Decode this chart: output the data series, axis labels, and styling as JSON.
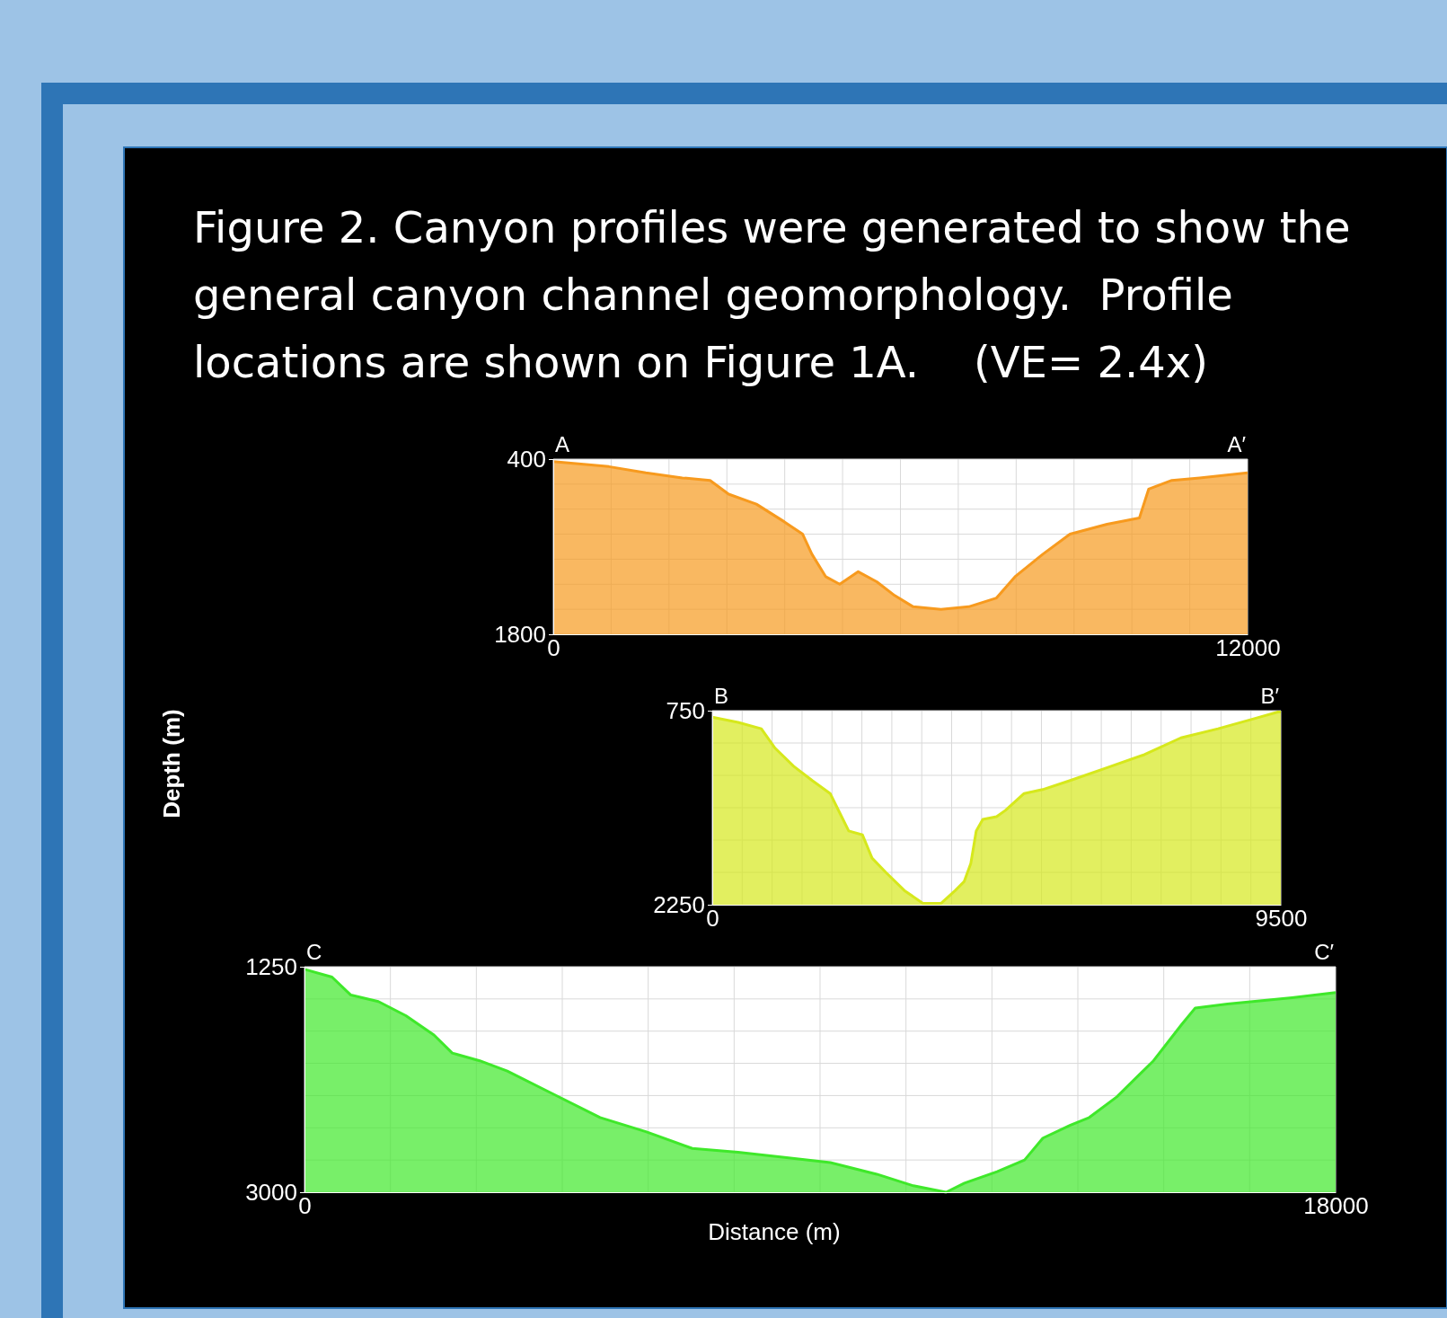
{
  "chart_data": [
    {
      "type": "line",
      "title": "Figure 2. Canyon profiles were generated to show the general canyon channel geomorphology.  Profile locations are shown on Figure 1A.    (VE= 2.4x)",
      "grid": true,
      "xlim": [
        0,
        12000
      ],
      "ylim": [
        1800,
        400
      ],
      "xticks": [
        0,
        {
          "value": 1000,
          "label": null
        },
        {
          "value": 2000,
          "label": null
        },
        {
          "value": 3000,
          "label": null
        },
        {
          "value": 4000,
          "label": null
        },
        {
          "value": 5000,
          "label": null
        },
        {
          "value": 6000,
          "label": null
        },
        {
          "value": 7000,
          "label": null
        },
        {
          "value": 8000,
          "label": null
        },
        {
          "value": 9000,
          "label": null
        },
        {
          "value": 10000,
          "label": null
        },
        {
          "value": 11000,
          "label": null
        },
        12000
      ],
      "yticks": [
        400,
        {
          "value": 600,
          "label": null
        },
        {
          "value": 800,
          "label": null
        },
        {
          "value": 1000,
          "label": null
        },
        {
          "value": 1200,
          "label": null
        },
        {
          "value": 1400,
          "label": null
        },
        {
          "value": 1600,
          "label": null
        },
        1800
      ],
      "annotations": [
        "A",
        "A′"
      ],
      "series": [
        {
          "color": "#f79a1e",
          "x": [
            0,
            960,
            1600,
            2230,
            2710,
            3030,
            3510,
            3990,
            4310,
            4470,
            4710,
            4950,
            5270,
            5590,
            5900,
            6220,
            6700,
            7180,
            7660,
            7980,
            8460,
            8930,
            9570,
            10130,
            10290,
            10690,
            11170,
            12000
          ],
          "values": [
            420,
            460,
            510,
            550,
            570,
            680,
            760,
            900,
            1000,
            1160,
            1340,
            1400,
            1300,
            1380,
            1490,
            1580,
            1600,
            1580,
            1510,
            1340,
            1160,
            1000,
            920,
            870,
            640,
            570,
            550,
            510
          ],
          "lower": [
            420,
            460,
            510,
            550,
            570,
            680,
            760,
            900,
            1000,
            1160,
            1340,
            1400,
            1300,
            1380,
            1490,
            1580,
            1600,
            1580,
            1510,
            1340,
            1160,
            1000,
            920,
            870,
            640,
            570,
            550,
            510
          ],
          "upper": [
            1800,
            1800,
            1800,
            1800,
            1800,
            1800,
            1800,
            1800,
            1800,
            1800,
            1800,
            1800,
            1800,
            1800,
            1800,
            1800,
            1800,
            1800,
            1800,
            1800,
            1800,
            1800,
            1800,
            1800,
            1800,
            1800,
            1800,
            1800
          ]
        }
      ]
    },
    {
      "type": "line",
      "ylabel": "Depth (m)",
      "grid": true,
      "xlim": [
        0,
        9500
      ],
      "ylim": [
        2250,
        750
      ],
      "xticks": [
        0,
        {
          "value": 500,
          "label": null
        },
        {
          "value": 1000,
          "label": null
        },
        {
          "value": 1500,
          "label": null
        },
        {
          "value": 2000,
          "label": null
        },
        {
          "value": 2500,
          "label": null
        },
        {
          "value": 3000,
          "label": null
        },
        {
          "value": 3500,
          "label": null
        },
        {
          "value": 4000,
          "label": null
        },
        {
          "value": 4500,
          "label": null
        },
        {
          "value": 5000,
          "label": null
        },
        {
          "value": 5500,
          "label": null
        },
        {
          "value": 6000,
          "label": null
        },
        {
          "value": 6500,
          "label": null
        },
        {
          "value": 7000,
          "label": null
        },
        {
          "value": 7500,
          "label": null
        },
        {
          "value": 8000,
          "label": null
        },
        {
          "value": 8500,
          "label": null
        },
        {
          "value": 9000,
          "label": null
        },
        9500
      ],
      "yticks": [
        750,
        {
          "value": 1000,
          "label": null
        },
        {
          "value": 1250,
          "label": null
        },
        {
          "value": 1500,
          "label": null
        },
        {
          "value": 1750,
          "label": null
        },
        {
          "value": 2000,
          "label": null
        },
        2250
      ],
      "annotations": [
        "B",
        "B′"
      ],
      "series": [
        {
          "color": "#d6e81c",
          "x": [
            0,
            430,
            820,
            1050,
            1360,
            1670,
            1970,
            2130,
            2280,
            2510,
            2670,
            2900,
            3210,
            3520,
            3820,
            4060,
            4210,
            4320,
            4410,
            4520,
            4750,
            4900,
            5210,
            5520,
            5980,
            6600,
            7220,
            7830,
            8450,
            9070,
            9450,
            9500
          ],
          "values": [
            800,
            840,
            890,
            1040,
            1180,
            1290,
            1390,
            1540,
            1680,
            1710,
            1890,
            2000,
            2140,
            2240,
            2240,
            2140,
            2070,
            1930,
            1680,
            1590,
            1570,
            1520,
            1390,
            1360,
            1290,
            1190,
            1090,
            960,
            890,
            810,
            760,
            760
          ],
          "lower": [
            800,
            840,
            890,
            1040,
            1180,
            1290,
            1390,
            1540,
            1680,
            1710,
            1890,
            2000,
            2140,
            2240,
            2240,
            2140,
            2070,
            1930,
            1680,
            1590,
            1570,
            1520,
            1390,
            1360,
            1290,
            1190,
            1090,
            960,
            890,
            810,
            760,
            760
          ],
          "upper": [
            2250,
            2250,
            2250,
            2250,
            2250,
            2250,
            2250,
            2250,
            2250,
            2250,
            2250,
            2250,
            2250,
            2250,
            2250,
            2250,
            2250,
            2250,
            2250,
            2250,
            2250,
            2250,
            2250,
            2250,
            2250,
            2250,
            2250,
            2250,
            2250,
            2250,
            2250,
            2250
          ]
        }
      ]
    },
    {
      "type": "line",
      "xlabel": "Distance (m)",
      "grid": true,
      "xlim": [
        0,
        18000
      ],
      "ylim": [
        3000,
        1250
      ],
      "xticks": [
        0,
        {
          "value": 1500,
          "label": null
        },
        {
          "value": 3000,
          "label": null
        },
        {
          "value": 4500,
          "label": null
        },
        {
          "value": 6000,
          "label": null
        },
        {
          "value": 7500,
          "label": null
        },
        {
          "value": 9000,
          "label": null
        },
        {
          "value": 10500,
          "label": null
        },
        {
          "value": 12000,
          "label": null
        },
        {
          "value": 13500,
          "label": null
        },
        {
          "value": 15000,
          "label": null
        },
        {
          "value": 16500,
          "label": null
        },
        18000
      ],
      "yticks": [
        1250,
        {
          "value": 1500,
          "label": null
        },
        {
          "value": 1750,
          "label": null
        },
        {
          "value": 2000,
          "label": null
        },
        {
          "value": 2250,
          "label": null
        },
        {
          "value": 2500,
          "label": null
        },
        {
          "value": 2750,
          "label": null
        },
        3000
      ],
      "annotations": [
        "C",
        "C′"
      ],
      "series": [
        {
          "color": "#3fe82a",
          "x": [
            0,
            480,
            810,
            1290,
            1770,
            2260,
            2580,
            3060,
            3540,
            4350,
            5160,
            5960,
            6770,
            7570,
            8380,
            9180,
            9990,
            10630,
            11200,
            11520,
            12090,
            12570,
            12890,
            13370,
            13700,
            14180,
            14820,
            15310,
            15550,
            16110,
            17240,
            18000
          ],
          "values": [
            1270,
            1330,
            1470,
            1520,
            1630,
            1780,
            1920,
            1980,
            2060,
            2240,
            2420,
            2530,
            2660,
            2690,
            2730,
            2770,
            2860,
            2950,
            3000,
            2930,
            2840,
            2750,
            2580,
            2480,
            2420,
            2260,
            1980,
            1700,
            1570,
            1540,
            1490,
            1450
          ],
          "lower": [
            1270,
            1330,
            1470,
            1520,
            1630,
            1780,
            1920,
            1980,
            2060,
            2240,
            2420,
            2530,
            2660,
            2690,
            2730,
            2770,
            2860,
            2950,
            3000,
            2930,
            2840,
            2750,
            2580,
            2480,
            2420,
            2260,
            1980,
            1700,
            1570,
            1540,
            1490,
            1450
          ],
          "upper": [
            3000,
            3000,
            3000,
            3000,
            3000,
            3000,
            3000,
            3000,
            3000,
            3000,
            3000,
            3000,
            3000,
            3000,
            3000,
            3000,
            3000,
            3000,
            3000,
            3000,
            3000,
            3000,
            3000,
            3000,
            3000,
            3000,
            3000,
            3000,
            3000,
            3000,
            3000,
            3000
          ]
        }
      ]
    }
  ]
}
